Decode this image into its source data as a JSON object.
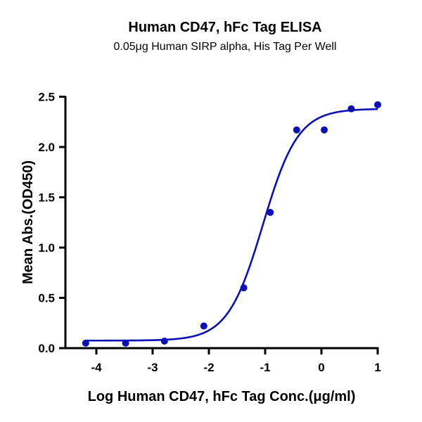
{
  "chart_data": {
    "type": "scatter",
    "title": "Human CD47, hFc Tag ELISA",
    "subtitle": "0.05μg Human SIRP alpha, His Tag Per Well",
    "xlabel": "Log Human CD47, hFc Tag Conc.(μg/ml)",
    "ylabel": "Mean Abs.(OD450)",
    "xlim": [
      -4.55,
      1
    ],
    "ylim": [
      0,
      2.5
    ],
    "xticks": [
      -4,
      -3,
      -2,
      -1,
      0,
      1
    ],
    "yticks": [
      0.0,
      0.5,
      1.0,
      1.5,
      2.0,
      2.5
    ],
    "xtick_labels": [
      "-4",
      "-3",
      "-2",
      "-1",
      "0",
      "1"
    ],
    "ytick_labels": [
      "0.0",
      "0.5",
      "1.0",
      "1.5",
      "2.0",
      "2.5"
    ],
    "grid": false,
    "color": "#0a10b8",
    "series": [
      {
        "x": [
          -4.19,
          -3.48,
          -2.79,
          -2.09,
          -1.38,
          -0.91,
          -0.44,
          0.05,
          0.53,
          1.0
        ],
        "y": [
          0.05,
          0.05,
          0.07,
          0.22,
          0.6,
          1.35,
          2.17,
          2.17,
          2.38,
          2.42
        ]
      }
    ],
    "fit": {
      "model": "4PL",
      "bottom": 0.075,
      "top": 2.38,
      "log_ec50": -1.04,
      "hill_slope": 1.39
    }
  }
}
